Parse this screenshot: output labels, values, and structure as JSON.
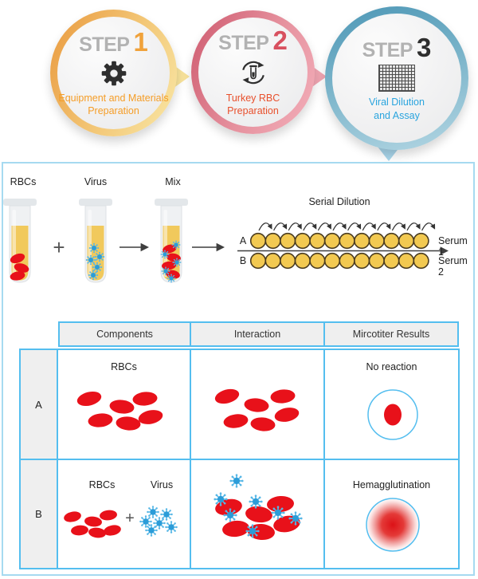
{
  "steps": [
    {
      "prefix": "STEP",
      "number": "1",
      "label": "Equipment and Materials\nPreparation"
    },
    {
      "prefix": "STEP",
      "number": "2",
      "label": "Turkey RBC\nPreparation"
    },
    {
      "prefix": "STEP",
      "number": "3",
      "label": "Viral Dilution\nand Assay"
    }
  ],
  "mixing": {
    "rbc_tube_label": "RBCs",
    "virus_tube_label": "Virus",
    "mix_tube_label": "Mix",
    "plus": "+"
  },
  "serial_dilution": {
    "title": "Serial Dilution",
    "row_a_label": "A",
    "row_b_label": "B",
    "serum1_label": "Serum 1",
    "serum2_label": "Serum 2",
    "wells_per_row": 12
  },
  "results_table": {
    "headers": [
      "Components",
      "Interaction",
      "Mircotiter Results"
    ],
    "row_a": {
      "label": "A",
      "components_label": "RBCs",
      "result_label": "No reaction"
    },
    "row_b": {
      "label": "B",
      "rbc_label": "RBCs",
      "virus_label": "Virus",
      "plus": "+",
      "result_label": "Hemagglutination"
    }
  },
  "colors": {
    "rbc_red": "#E8111A",
    "virus_blue": "#2B9CD8",
    "well_yellow": "#F2C951",
    "table_border_blue": "#54BEEF",
    "panel_border_blue": "#A6DAF0",
    "step1_accent": "#F0A23B",
    "step2_accent": "#D8505F",
    "step3_accent": "#2E2E2E",
    "step1_label_color": "#F59D27",
    "step2_label_color": "#E8502C",
    "step3_label_color": "#29A4DE"
  }
}
